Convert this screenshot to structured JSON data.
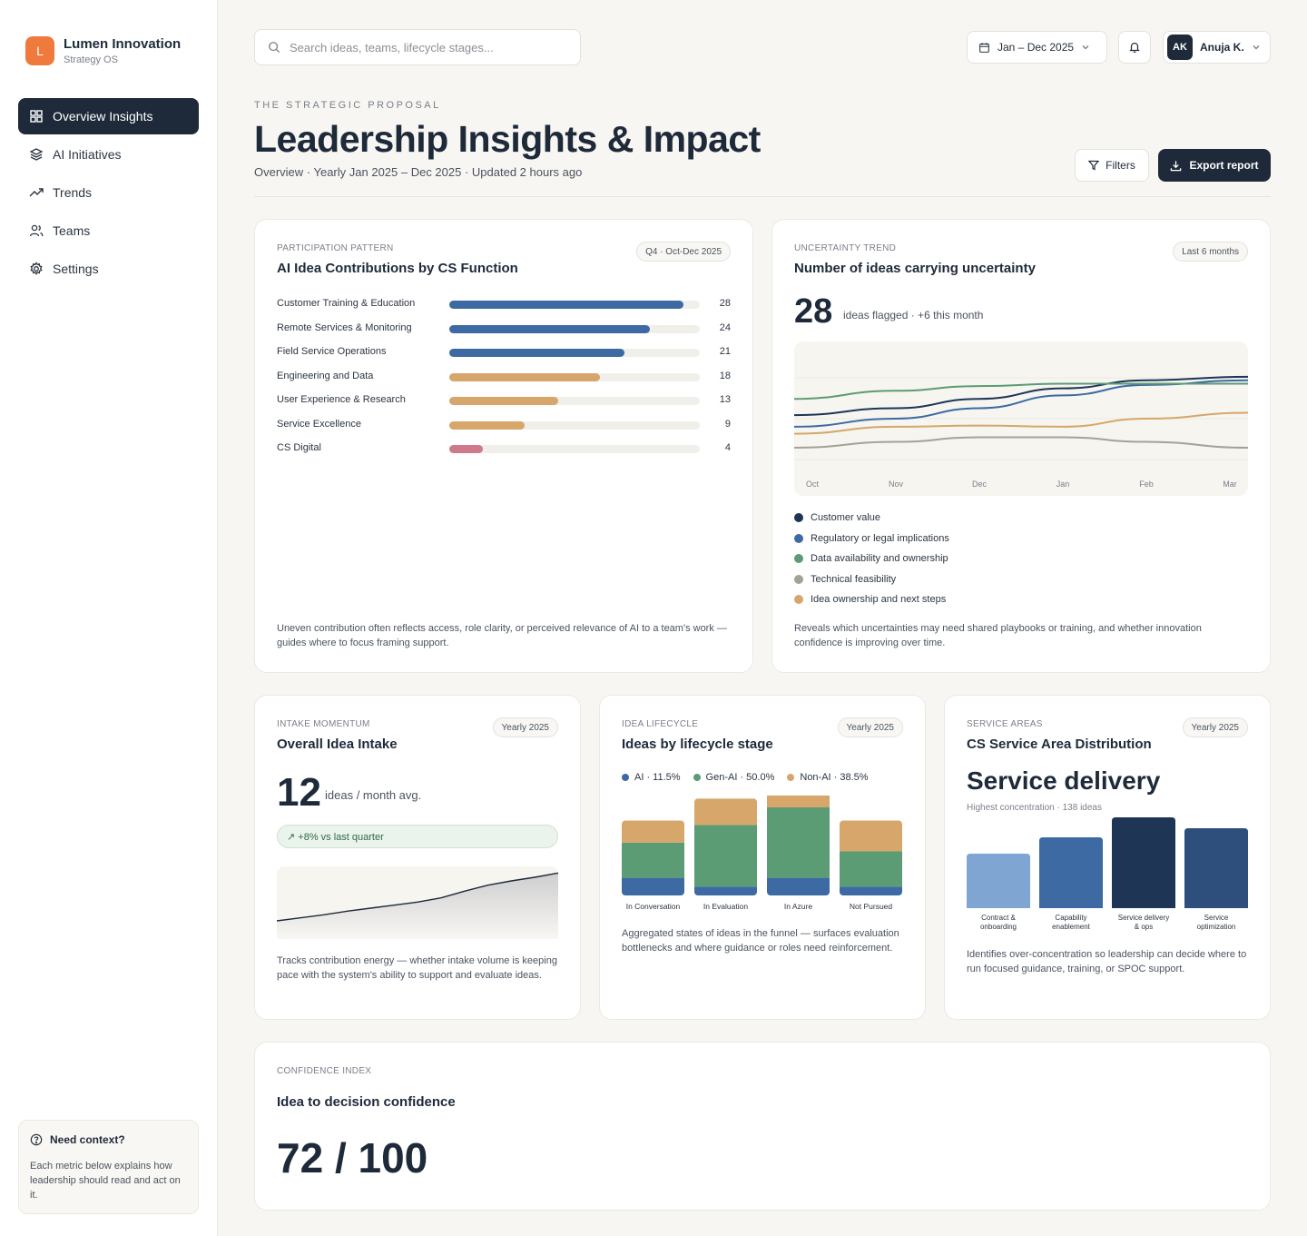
{
  "brand": {
    "logo_letter": "L",
    "name": "Lumen Innovation",
    "subtitle": "Strategy OS",
    "color": "#f07a3c"
  },
  "nav": {
    "items": [
      {
        "label": "Overview Insights",
        "icon": "grid-icon",
        "active": true
      },
      {
        "label": "AI Initiatives",
        "icon": "layers-icon"
      },
      {
        "label": "Trends",
        "icon": "trend-icon"
      },
      {
        "label": "Teams",
        "icon": "users-icon"
      },
      {
        "label": "Settings",
        "icon": "gear-icon"
      }
    ]
  },
  "context": {
    "title": "Need context?",
    "body": "Each metric below explains how leadership should read and act on it."
  },
  "topbar": {
    "search_placeholder": "Search ideas, teams, lifecycle stages...",
    "date_range": "Jan – Dec 2025",
    "user_initials": "AK",
    "user_name": "Anuja K."
  },
  "header": {
    "eyebrow": "THE STRATEGIC PROPOSAL",
    "title": "Leadership Insights & Impact",
    "subtitle": "Overview · Yearly Jan 2025 – Dec 2025 · Updated 2 hours ago",
    "filters_label": "Filters",
    "export_label": "Export report"
  },
  "contributions": {
    "eyebrow": "PARTICIPATION PATTERN",
    "title": "AI Idea Contributions by CS Function",
    "pill": "Q4 · Oct-Dec 2025",
    "note": "Uneven contribution often reflects access, role clarity, or perceived relevance of AI to a team's work — guides where to focus framing support.",
    "max": 30
  },
  "uncertainty": {
    "eyebrow": "UNCERTAINTY TREND",
    "title": "Number of ideas carrying uncertainty",
    "pill": "Last 6 months",
    "value": "28",
    "value_caption": "ideas flagged · +6 this month",
    "note": "Reveals which uncertainties may need shared playbooks or training, and whether innovation confidence is improving over time."
  },
  "intake": {
    "eyebrow": "INTAKE MOMENTUM",
    "title": "Overall Idea Intake",
    "pill": "Yearly 2025",
    "value": "12",
    "value_caption": "ideas / month avg.",
    "badge": "↗ +8% vs last quarter",
    "note": "Tracks contribution energy — whether intake volume is keeping pace with the system's ability to support and evaluate ideas.",
    "sparkline": [
      3,
      3.5,
      4,
      4.6,
      5.1,
      5.6,
      6.1,
      6.8,
      7.9,
      8.9,
      9.6,
      10.2,
      10.9
    ]
  },
  "lifecycle": {
    "eyebrow": "IDEA LIFECYCLE",
    "title": "Ideas by lifecycle stage",
    "pill": "Yearly 2025",
    "legend": [
      {
        "label": "AI · 11.5%",
        "color": "#3d6aa3"
      },
      {
        "label": "Gen-AI · 50.0%",
        "color": "#5b9c74"
      },
      {
        "label": "Non-AI · 38.5%",
        "color": "#d6a66a"
      }
    ],
    "note": "Aggregated states of ideas in the funnel — surfaces evaluation bottlenecks and where guidance or roles need reinforcement."
  },
  "service": {
    "eyebrow": "SERVICE AREAS",
    "title": "CS Service Area Distribution",
    "pill": "Yearly 2025",
    "headline": "Service delivery",
    "caption": "Highest concentration · 138 ideas",
    "note": "Identifies over-concentration so leadership can decide where to run focused guidance, training, or SPOC support."
  },
  "confidence": {
    "eyebrow": "CONFIDENCE INDEX",
    "title": "Idea to decision confidence",
    "value": "72 / 100"
  },
  "chart_data": [
    {
      "type": "bar",
      "orientation": "horizontal",
      "categories": [
        "Customer Training & Education",
        "Remote Services & Monitoring",
        "Field Service Operations",
        "Engineering and Data",
        "User Experience & Research",
        "Service Excellence",
        "CS Digital"
      ],
      "values": [
        28,
        24,
        21,
        18,
        13,
        9,
        4
      ],
      "colors": [
        "#3d6aa3",
        "#3d6aa3",
        "#3d6aa3",
        "#d6a66a",
        "#d6a66a",
        "#d6a66a",
        "#cf7a8a"
      ],
      "title": "AI Idea Contributions by CS Function"
    },
    {
      "type": "line",
      "title": "Number of ideas carrying uncertainty",
      "x": [
        "Oct",
        "Nov",
        "Dec",
        "Jan",
        "Feb",
        "Mar"
      ],
      "ylim": [
        0,
        10
      ],
      "series": [
        {
          "name": "Customer value",
          "color": "#1e3556",
          "values": [
            4.6,
            5.2,
            6.0,
            6.9,
            7.6,
            7.9
          ]
        },
        {
          "name": "Regulatory or legal implications",
          "color": "#3d6aa3",
          "values": [
            3.6,
            4.3,
            5.2,
            6.3,
            7.2,
            7.6
          ]
        },
        {
          "name": "Data availability and ownership",
          "color": "#5b9c74",
          "values": [
            6.0,
            6.7,
            7.1,
            7.3,
            7.3,
            7.3
          ]
        },
        {
          "name": "Technical feasibility",
          "color": "#a3a296",
          "values": [
            1.8,
            2.3,
            2.7,
            2.7,
            2.3,
            1.8
          ]
        },
        {
          "name": "Idea ownership and next steps",
          "color": "#d6a66a",
          "values": [
            3.0,
            3.6,
            3.7,
            3.6,
            4.3,
            4.8
          ]
        }
      ]
    },
    {
      "type": "bar",
      "stacked": true,
      "title": "Ideas by lifecycle stage",
      "categories": [
        "In Conversation",
        "In Evaluation",
        "In Azure",
        "Not Pursued"
      ],
      "series": [
        {
          "name": "AI · 11.5%",
          "color": "#3d6aa3",
          "values": [
            2,
            1,
            2,
            1
          ]
        },
        {
          "name": "Gen-AI · 50.0%",
          "color": "#5b9c74",
          "values": [
            4,
            7,
            8,
            4
          ]
        },
        {
          "name": "Non-AI · 38.5%",
          "color": "#d6a66a",
          "values": [
            2.5,
            3,
            2,
            3.5
          ]
        }
      ]
    },
    {
      "type": "bar",
      "title": "CS Service Area Distribution",
      "categories": [
        "Contract & onboarding",
        "Capability enablement",
        "Service delivery & ops",
        "Service optimization"
      ],
      "values": [
        60,
        78,
        100,
        88
      ],
      "colors": [
        "#7fa6d3",
        "#3d6aa3",
        "#1e3556",
        "#2e4e7c"
      ]
    }
  ]
}
